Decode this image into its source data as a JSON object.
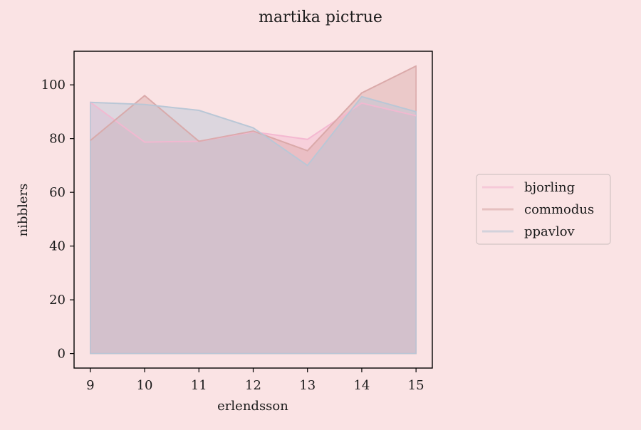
{
  "chart_data": {
    "type": "area",
    "title": "martika pictrue",
    "xlabel": "erlendsson",
    "ylabel": "nibblers",
    "x": [
      9,
      10,
      11,
      12,
      13,
      14,
      15
    ],
    "xlim": [
      8.7,
      15.3
    ],
    "ylim": [
      -5.4,
      112.5
    ],
    "xticks": [
      "9",
      "10",
      "11",
      "12",
      "13",
      "14",
      "15"
    ],
    "yticks": [
      "0",
      "20",
      "40",
      "60",
      "80",
      "100"
    ],
    "grid": false,
    "legend_placement": "center-right, outside plot",
    "series": [
      {
        "name": "bjorling",
        "color": "#f4b8d0",
        "values": [
          93.5,
          78.7,
          79.0,
          82.5,
          79.7,
          93.2,
          88.5
        ]
      },
      {
        "name": "commodus",
        "color": "#d9a8a8",
        "values": [
          79.3,
          96.0,
          79.0,
          82.8,
          75.5,
          97.0,
          107.0
        ]
      },
      {
        "name": "ppavlov",
        "color": "#b9c6d6",
        "values": [
          93.5,
          92.7,
          90.5,
          84.0,
          70.0,
          95.6,
          90.0
        ]
      }
    ],
    "colors": {
      "background": "#fae3e4",
      "axes_frame": "#000000"
    }
  }
}
